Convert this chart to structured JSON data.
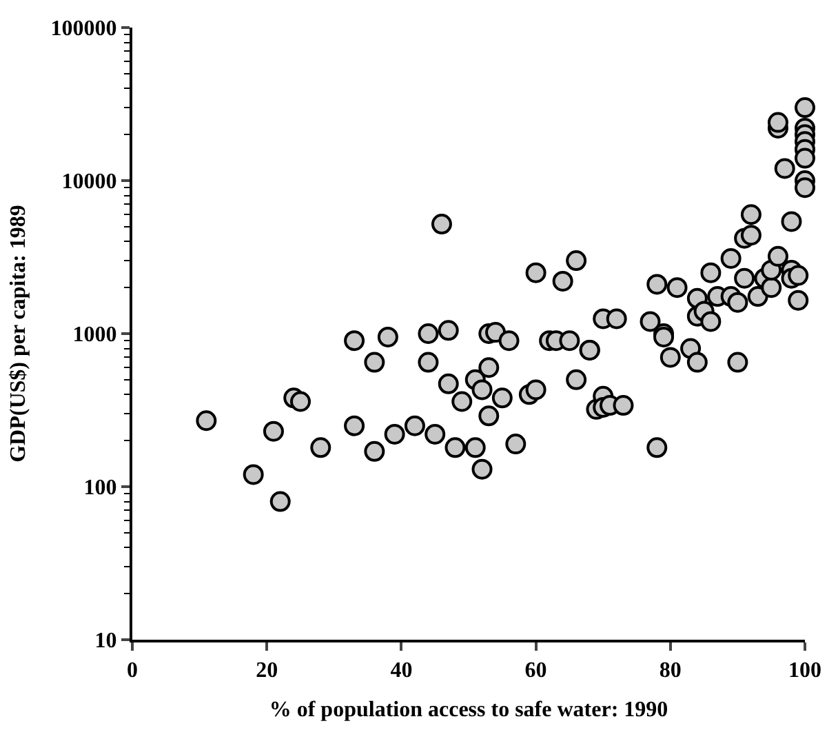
{
  "chart_data": {
    "type": "scatter",
    "xlabel": "% of population access to safe water: 1990",
    "ylabel": "GDP(US$) per capita: 1989",
    "x": [
      11,
      18,
      21,
      22,
      24,
      25,
      28,
      33,
      33,
      36,
      36,
      38,
      39,
      42,
      44,
      44,
      45,
      46,
      47,
      47,
      48,
      49,
      51,
      51,
      52,
      52,
      53,
      53,
      53,
      54,
      55,
      56,
      57,
      59,
      60,
      60,
      62,
      63,
      64,
      65,
      66,
      66,
      68,
      68,
      69,
      70,
      70,
      70,
      71,
      72,
      73,
      77,
      78,
      78,
      79,
      79,
      80,
      81,
      83,
      84,
      84,
      84,
      85,
      86,
      86,
      87,
      89,
      89,
      90,
      90,
      91,
      91,
      92,
      92,
      93,
      94,
      95,
      95,
      96,
      96,
      96,
      97,
      98,
      98,
      98,
      99,
      99,
      100,
      100,
      100,
      100,
      100,
      100,
      100,
      100
    ],
    "series": [
      {
        "color": "#c8c8c8",
        "values": [
          270,
          120,
          230,
          80,
          380,
          360,
          180,
          900,
          250,
          650,
          170,
          950,
          220,
          250,
          1000,
          650,
          220,
          5200,
          1050,
          470,
          180,
          360,
          180,
          500,
          130,
          430,
          1000,
          600,
          290,
          1020,
          380,
          900,
          190,
          400,
          2500,
          430,
          900,
          900,
          2200,
          900,
          3000,
          500,
          780,
          780,
          320,
          1250,
          390,
          330,
          340,
          1250,
          340,
          1200,
          2100,
          180,
          1000,
          950,
          700,
          2000,
          800,
          1700,
          1300,
          650,
          1400,
          2500,
          1200,
          1750,
          1750,
          3100,
          1600,
          650,
          2300,
          4200,
          4400,
          6000,
          1750,
          2300,
          2000,
          2600,
          3200,
          22000,
          24000,
          12000,
          5400,
          2600,
          2300,
          1650,
          2400,
          30000,
          22000,
          20000,
          18000,
          16000,
          14000,
          10000,
          9000
        ]
      }
    ],
    "xlim": [
      0,
      100
    ],
    "xticks": [
      0,
      20,
      40,
      60,
      80,
      100
    ],
    "ylim": [
      10,
      100000
    ],
    "yticks": [
      10,
      100,
      1000,
      10000,
      100000
    ],
    "log": "y",
    "legend": false,
    "marker": "circle"
  }
}
